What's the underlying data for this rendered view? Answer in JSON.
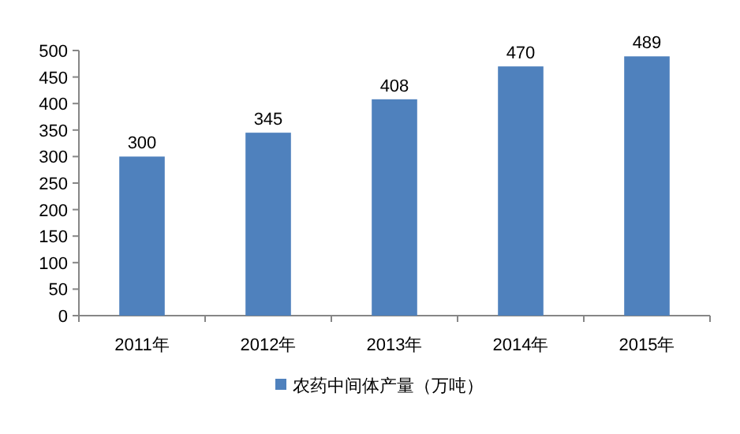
{
  "chart_data": {
    "type": "bar",
    "categories": [
      "2011年",
      "2012年",
      "2013年",
      "2014年",
      "2015年"
    ],
    "series": [
      {
        "name": "农药中间体产量（万吨）",
        "color": "#4f81bd",
        "values": [
          300,
          345,
          408,
          470,
          489
        ]
      }
    ],
    "ylim": [
      0,
      500
    ],
    "yticks": [
      0,
      50,
      100,
      150,
      200,
      250,
      300,
      350,
      400,
      450,
      500
    ],
    "data_labels": true,
    "legend": "bottom"
  }
}
